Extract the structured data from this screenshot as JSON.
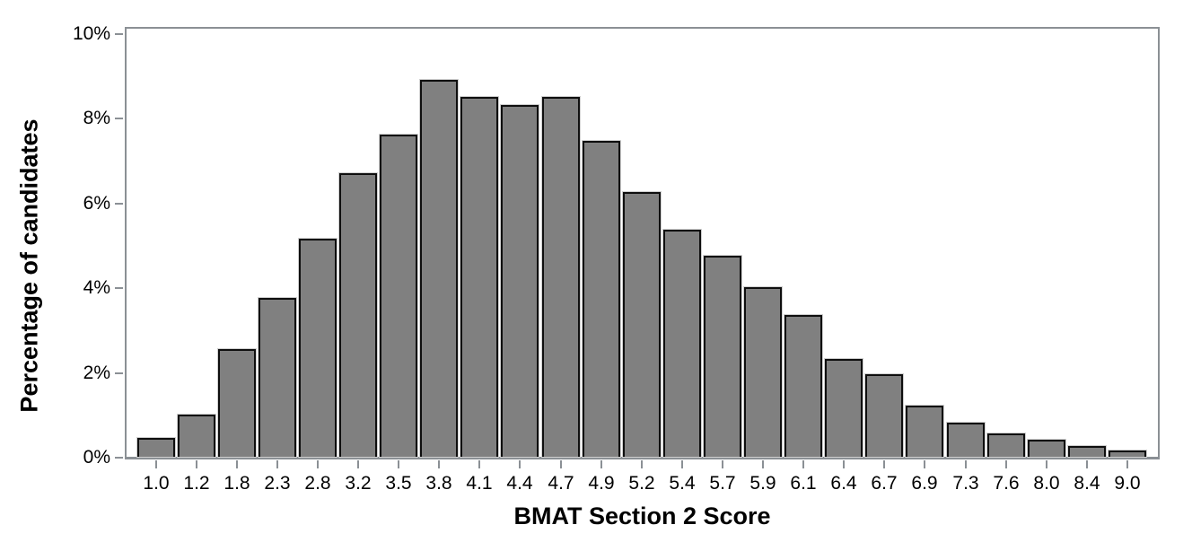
{
  "chart_data": {
    "type": "bar",
    "title": "",
    "xlabel": "BMAT Section 2 Score",
    "ylabel": "Percentage of candidates",
    "categories": [
      "1.0",
      "1.2",
      "1.8",
      "2.3",
      "2.8",
      "3.2",
      "3.5",
      "3.8",
      "4.1",
      "4.4",
      "4.7",
      "4.9",
      "5.2",
      "5.4",
      "5.7",
      "5.9",
      "6.1",
      "6.4",
      "6.7",
      "6.9",
      "7.3",
      "7.6",
      "8.0",
      "8.4",
      "9.0"
    ],
    "values": [
      0.45,
      1.0,
      2.55,
      3.75,
      5.15,
      6.7,
      7.6,
      8.9,
      8.5,
      8.3,
      8.5,
      7.45,
      6.25,
      5.35,
      4.75,
      4.0,
      3.35,
      2.3,
      1.95,
      1.2,
      0.8,
      0.55,
      0.4,
      0.25,
      0.15
    ],
    "value_unit": "%",
    "ylim": [
      0,
      10
    ],
    "ytick_values": [
      0,
      2,
      4,
      6,
      8,
      10
    ],
    "ytick_labels": [
      "0%",
      "2%",
      "4%",
      "6%",
      "8%",
      "10%"
    ],
    "grid": false,
    "legend": "none",
    "bar_fill_color": "#808080",
    "bar_border_color": "#0f0f0f",
    "axis_color": "#8b9095",
    "text_color": "#000000"
  }
}
